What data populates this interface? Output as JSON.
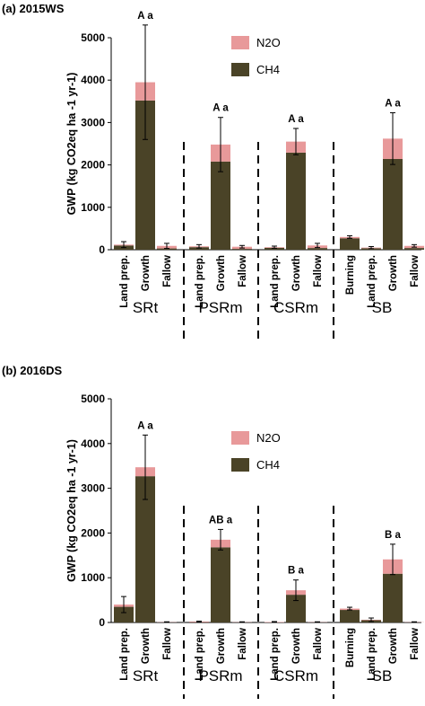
{
  "chart_data": [
    {
      "type": "bar",
      "stacked": true,
      "title": "(a) 2015WS",
      "ylabel": "GWP (kg CO2eq ha -1 yr-1)",
      "ylim": [
        0,
        5000
      ],
      "yticks": [
        0,
        1000,
        2000,
        3000,
        4000,
        5000
      ],
      "colors": {
        "CH4": "#4a4327",
        "N2O": "#e8999a"
      },
      "legend": [
        "N2O",
        "CH4"
      ],
      "legend_position": "top-center",
      "groups": [
        {
          "name": "SRt",
          "categories": [
            "Land prep.",
            "Growth",
            "Fallow"
          ],
          "ch4": [
            100,
            3520,
            30
          ],
          "n2o": [
            20,
            430,
            60
          ],
          "err": [
            70,
            1350,
            60
          ],
          "ann": [
            "",
            "A a",
            ""
          ]
        },
        {
          "name": "PSRm",
          "categories": [
            "Land prep.",
            "Growth",
            "Fallow"
          ],
          "ch4": [
            60,
            2080,
            20
          ],
          "n2o": [
            20,
            400,
            50
          ],
          "err": [
            40,
            640,
            30
          ],
          "ann": [
            "",
            "A a",
            ""
          ]
        },
        {
          "name": "CSRm",
          "categories": [
            "Land prep.",
            "Growth",
            "Fallow"
          ],
          "ch4": [
            45,
            2290,
            40
          ],
          "n2o": [
            15,
            260,
            60
          ],
          "err": [
            25,
            310,
            50
          ],
          "ann": [
            "",
            "A a",
            ""
          ]
        },
        {
          "name": "SB",
          "categories": [
            "Burning",
            "Land prep.",
            "Growth",
            "Fallow"
          ],
          "ch4": [
            270,
            35,
            2140,
            40
          ],
          "n2o": [
            30,
            15,
            480,
            50
          ],
          "err": [
            30,
            25,
            610,
            30
          ],
          "ann": [
            "",
            "",
            "A a",
            ""
          ]
        }
      ]
    },
    {
      "type": "bar",
      "stacked": true,
      "title": "(b) 2016DS",
      "ylabel": "GWP (kg CO2eq ha -1 yr-1)",
      "ylim": [
        0,
        5000
      ],
      "yticks": [
        0,
        1000,
        2000,
        3000,
        4000,
        5000
      ],
      "colors": {
        "CH4": "#4a4327",
        "N2O": "#e8999a"
      },
      "legend": [
        "N2O",
        "CH4"
      ],
      "legend_position": "top-center",
      "groups": [
        {
          "name": "SRt",
          "categories": [
            "Land prep.",
            "Growth",
            "Fallow"
          ],
          "ch4": [
            350,
            3270,
            0
          ],
          "n2o": [
            50,
            200,
            5
          ],
          "err": [
            180,
            720,
            10
          ],
          "ann": [
            "",
            "A a",
            ""
          ]
        },
        {
          "name": "PSRm",
          "categories": [
            "Land prep.",
            "Growth",
            "Fallow"
          ],
          "ch4": [
            5,
            1680,
            0
          ],
          "n2o": [
            15,
            170,
            5
          ],
          "err": [
            10,
            230,
            10
          ],
          "ann": [
            "",
            "AB a",
            ""
          ]
        },
        {
          "name": "CSRm",
          "categories": [
            "Land prep.",
            "Growth",
            "Fallow"
          ],
          "ch4": [
            0,
            620,
            0
          ],
          "n2o": [
            10,
            100,
            5
          ],
          "err": [
            10,
            230,
            10
          ],
          "ann": [
            "",
            "B a",
            ""
          ]
        },
        {
          "name": "SB",
          "categories": [
            "Burning",
            "Land prep.",
            "Growth",
            "Fallow"
          ],
          "ch4": [
            280,
            50,
            1090,
            0
          ],
          "n2o": [
            30,
            10,
            320,
            5
          ],
          "err": [
            30,
            40,
            340,
            10
          ],
          "ann": [
            "",
            "",
            "B a",
            ""
          ]
        }
      ]
    }
  ]
}
